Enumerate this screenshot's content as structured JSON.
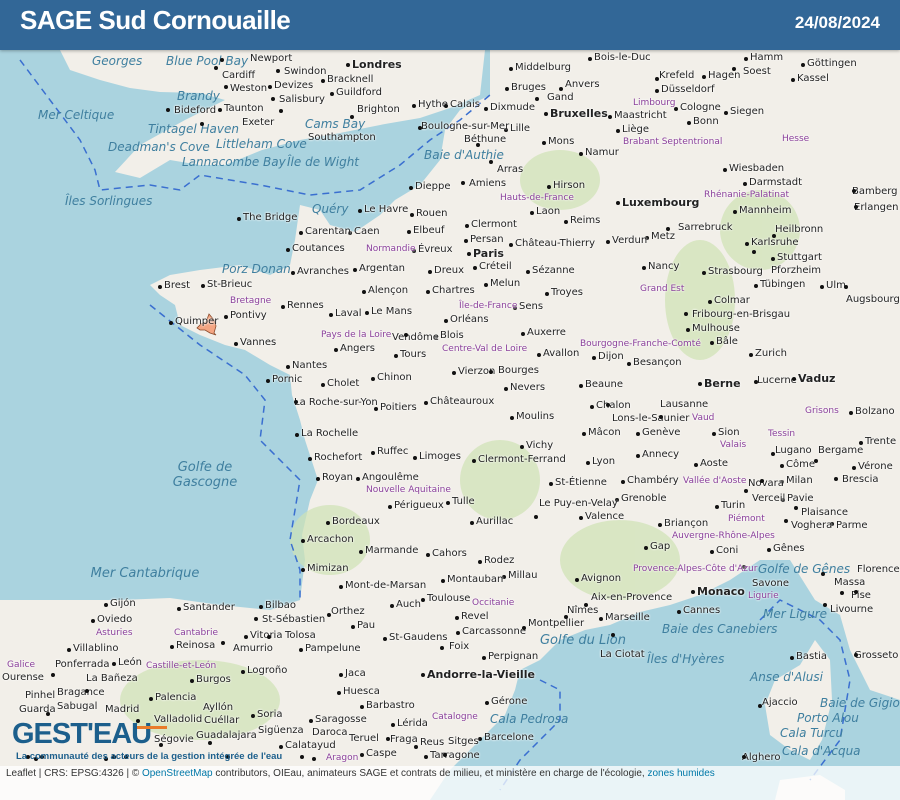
{
  "header": {
    "title": "SAGE Sud Cornouaille",
    "date": "24/08/2024"
  },
  "colors": {
    "header": "#326797",
    "sea": "#aad3df",
    "land": "#f2efe9",
    "forest": "#cfe3b4",
    "sage_area": "#f4a582",
    "boundary": "#3a6fd0"
  },
  "highlight": {
    "name": "Sud Cornouaille"
  },
  "labels": {
    "cities": [
      "Londres",
      "Cardiff",
      "Newport",
      "Swindon",
      "Bracknell",
      "Guildford",
      "Weston",
      "Devizes",
      "Salisbury",
      "Southampton",
      "Brighton",
      "Taunton",
      "Bideford",
      "Exeter",
      "Hythe",
      "Calais",
      "Dixmude",
      "Bruges",
      "Gand",
      "Anvers",
      "Bruxelles",
      "Lille",
      "Mons",
      "Namur",
      "Liège",
      "Maastricht",
      "Middelburg",
      "Bois-le-Duc",
      "Cologne",
      "Bonn",
      "Düsseldorf",
      "Krefeld",
      "Hagen",
      "Hamm",
      "Soest",
      "Siegen",
      "Kassel",
      "Göttingen",
      "Boulogne-sur-Mer",
      "Béthune",
      "Arras",
      "Amiens",
      "Dieppe",
      "Le Havre",
      "Rouen",
      "Caen",
      "Elbeuf",
      "Carentan",
      "The Bridge",
      "Coutances",
      "Avranches",
      "St-Brieuc",
      "Brest",
      "Quimper",
      "Pontivy",
      "Rennes",
      "Vannes",
      "Nantes",
      "Laval",
      "Le Mans",
      "Alençon",
      "Argentan",
      "Dreux",
      "Évreux",
      "Chartres",
      "Paris",
      "Créteil",
      "Persan",
      "Clermont",
      "Laon",
      "Hirson",
      "Reims",
      "Château-Thierry",
      "Sézanne",
      "Troyes",
      "Sens",
      "Melun",
      "Orléans",
      "Blois",
      "Tours",
      "Vendôme",
      "Angers",
      "Cholet",
      "Chinon",
      "Poitiers",
      "La Roche-sur-Yon",
      "Pornic",
      "La Rochelle",
      "Rochefort",
      "Royan",
      "Angoulême",
      "Limoges",
      "Ruffec",
      "Châteauroux",
      "Vierzon",
      "Bourges",
      "Nevers",
      "Moulins",
      "Vichy",
      "Clermont-Ferrand",
      "Auxerre",
      "Avallon",
      "Dijon",
      "Besançon",
      "Beaune",
      "Chalon",
      "Lons-le-Saunier",
      "Mâcon",
      "Lyon",
      "St-Étienne",
      "Genève",
      "Annecy",
      "Chambéry",
      "Grenoble",
      "Valence",
      "Le Puy-en-Velay",
      "Aurillac",
      "Tulle",
      "Périgueux",
      "Bordeaux",
      "Arcachon",
      "Marmande",
      "Cahors",
      "Rodez",
      "Millau",
      "Montauban",
      "Toulouse",
      "Auch",
      "Mont-de-Marsan",
      "Mimizan",
      "Pau",
      "Orthez",
      "St-Gaudens",
      "Foix",
      "Carcassonne",
      "Revel",
      "Perpignan",
      "Montpellier",
      "Nîmes",
      "Avignon",
      "Aix-en-Provence",
      "Marseille",
      "La Ciotat",
      "Cannes",
      "Monaco",
      "Gap",
      "Briançon",
      "Metz",
      "Nancy",
      "Verdun",
      "Strasbourg",
      "Colmar",
      "Mulhouse",
      "Bâle",
      "Zurich",
      "Berne",
      "Lucerne",
      "Lausanne",
      "Sion",
      "Aoste",
      "Turin",
      "Milan",
      "Pavie",
      "Gênes",
      "Plaisance",
      "Parme",
      "Vaduz",
      "Karlsruhe",
      "Mannheim",
      "Heilbronn",
      "Stuttgart",
      "Pforzheim",
      "Tübingen",
      "Ulm",
      "Augsbourg",
      "Fribourg-en-Brisgau",
      "Sarrebruck",
      "Luxembourg",
      "Wiesbaden",
      "Darmstadt",
      "Bamberg",
      "Erlangen",
      "Bastia",
      "Ajaccio",
      "Santander",
      "Bilbao",
      "St-Sébastien",
      "Pampelune",
      "Vitoria",
      "Logroño",
      "Burgos",
      "Palencia",
      "Valladolid",
      "León",
      "Oviedo",
      "Gijón",
      "Lérida",
      "Saragosse",
      "Huesca",
      "Barcelone",
      "Gérone",
      "Tarragone",
      "Reus",
      "Sitges",
      "Andorre-la-Vieille",
      "Soria",
      "Ségovie",
      "Madrid",
      "Guadalajara",
      "Calatayud",
      "Caspe",
      "Fraga",
      "Cuéllar",
      "Ayllón",
      "Sigüenza",
      "Daroca",
      "Teruel",
      "Guarda",
      "Sabugal",
      "Pinhel",
      "Bragance",
      "Ourense",
      "La Bañeza",
      "Villablino",
      "Ponferrada",
      "Reinosa",
      "Amurrio",
      "Tolosa",
      "Jaca",
      "Barbastro",
      "Massa",
      "Pise",
      "Livourne",
      "Florence",
      "Grosseto",
      "Bolzano",
      "Trente",
      "Vérone",
      "Côme",
      "Lugano",
      "Bergame",
      "Brescia",
      "Novara",
      "Verceil",
      "Voghera",
      "Coni",
      "Savone",
      "Alghero"
    ],
    "seas": [
      "Golfe de Gascogne",
      "Mer Cantabrique",
      "Golfe du Lion",
      "Mer Celtique",
      "Golfe de Gênes",
      "Mer Ligure",
      "Baie d'Authie",
      "Cams Bay",
      "Lannacombe Bay",
      "Deadman's Cove",
      "Tintagel Haven",
      "Littleham Cove",
      "Blue Pool Bay",
      "Brandy",
      "Porz Donan",
      "Quéry",
      "Îles Sorlingues",
      "Île de Wight",
      "Îles d'Hyères",
      "Baie des Canebiers",
      "Cala Pedrosa",
      "Cala Turcu",
      "Cala d'Acqua",
      "Porto Alou",
      "Anse d'Alusi",
      "Baie de Gigio",
      "Georges"
    ],
    "regions": [
      "Normandie",
      "Bretagne",
      "Centre-Val de Loire",
      "Nouvelle Aquitaine",
      "Occitanie",
      "Auvergne-Rhône-Alpes",
      "Provence-Alpes-Côte d'Azur",
      "Grand Est",
      "Bourgogne-Franche-Comté",
      "Hauts-de-France",
      "Île-de-France",
      "Pays de la Loire",
      "Catalogne",
      "Aragon",
      "Cantabrie",
      "Asturies",
      "Galice",
      "Castille-et-León",
      "Vallée d'Aoste",
      "Piémont",
      "Ligurie",
      "Vaud",
      "Valais",
      "Tessin",
      "Grisons",
      "Brabant Septentrional",
      "Limbourg",
      "Hesse",
      "Rhénanie-Palatinat"
    ]
  },
  "attribution": {
    "prefix": "Leaflet | CRS: EPSG:4326 | ©",
    "osm_link": "OpenStreetMap",
    "text": "contributors, OIEau, animateurs SAGE et contrats de milieu, et ministère en charge de l'écologie,",
    "link": "zones humides"
  },
  "logo": {
    "name": "GEST'EAU",
    "tagline": "La communauté des acteurs de la gestion intégrée de l'eau"
  }
}
